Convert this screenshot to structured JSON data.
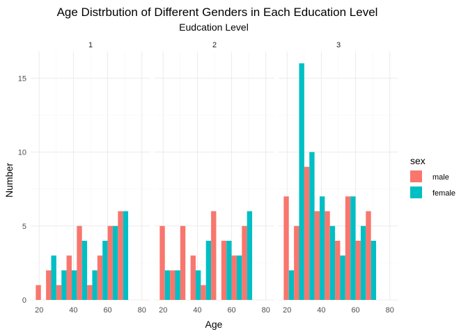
{
  "chart_data": {
    "type": "bar",
    "title": "Age Distrbution of Different Genders in Each Education Level",
    "subtitle": "Eudcation Level",
    "xlabel": "Age",
    "ylabel": "Number",
    "xlim": [
      15,
      85
    ],
    "ylim": [
      0,
      16.8
    ],
    "xticks": [
      20,
      40,
      60,
      80
    ],
    "yticks": [
      0,
      5,
      10,
      15
    ],
    "bin_width": 6,
    "legend": {
      "title": "sex",
      "position": "right",
      "entries": [
        {
          "name": "male",
          "color": "#F8766D"
        },
        {
          "name": "female",
          "color": "#00BFC4"
        }
      ]
    },
    "grid": true,
    "facets": [
      {
        "label": "1",
        "bins": [
          18,
          24,
          30,
          36,
          42,
          48,
          54,
          60,
          66,
          72,
          78
        ],
        "series": [
          {
            "name": "male",
            "values": [
              1,
              2,
              1,
              3,
              5,
              1,
              3,
              5,
              6,
              0,
              0
            ]
          },
          {
            "name": "female",
            "values": [
              0,
              3,
              2,
              2,
              4,
              2,
              4,
              5,
              6,
              0,
              0
            ]
          }
        ]
      },
      {
        "label": "2",
        "bins": [
          18,
          24,
          30,
          36,
          42,
          48,
          54,
          60,
          66,
          72,
          78
        ],
        "series": [
          {
            "name": "male",
            "values": [
              5,
              2,
              5,
              3,
              1,
              6,
              4,
              3,
              5,
              0,
              0
            ]
          },
          {
            "name": "female",
            "values": [
              2,
              2,
              0,
              2,
              4,
              0,
              4,
              3,
              6,
              0,
              0
            ]
          }
        ]
      },
      {
        "label": "3",
        "bins": [
          18,
          24,
          30,
          36,
          42,
          48,
          54,
          60,
          66,
          72,
          78
        ],
        "series": [
          {
            "name": "male",
            "values": [
              7,
              5,
              9,
              6,
              6,
              4,
              7,
              4,
              6,
              0,
              0
            ]
          },
          {
            "name": "female",
            "values": [
              2,
              16,
              10,
              7,
              5,
              3,
              7,
              5,
              4,
              0,
              0
            ]
          }
        ]
      }
    ]
  }
}
